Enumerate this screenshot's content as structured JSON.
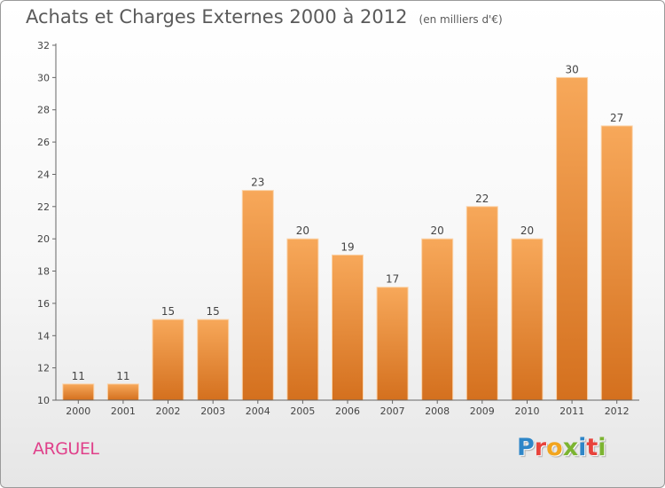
{
  "header": {
    "title": "Achats et Charges Externes 2000 à 2012",
    "subtitle": "(en milliers d'€)"
  },
  "footer": {
    "commune": "ARGUEL",
    "logo_text": "Proxiti",
    "logo_colors": [
      "#2e86c8",
      "#e8433c",
      "#f2a51f",
      "#7cb431",
      "#2e86c8",
      "#e8433c",
      "#7cb431"
    ]
  },
  "chart_data": {
    "type": "bar",
    "title": "Achats et Charges Externes 2000 à 2012",
    "subtitle": "(en milliers d'€)",
    "xlabel": "",
    "ylabel": "",
    "categories": [
      "2000",
      "2001",
      "2002",
      "2003",
      "2004",
      "2005",
      "2006",
      "2007",
      "2008",
      "2009",
      "2010",
      "2011",
      "2012"
    ],
    "values": [
      11,
      11,
      15,
      15,
      23,
      20,
      19,
      17,
      20,
      22,
      20,
      30,
      27
    ],
    "ylim": [
      10,
      32
    ],
    "yticks": [
      10,
      12,
      14,
      16,
      18,
      20,
      22,
      24,
      26,
      28,
      30,
      32
    ],
    "grid": false,
    "legend": "none",
    "bar_color_top": "#f7a85a",
    "bar_color_bottom": "#d4701e"
  }
}
